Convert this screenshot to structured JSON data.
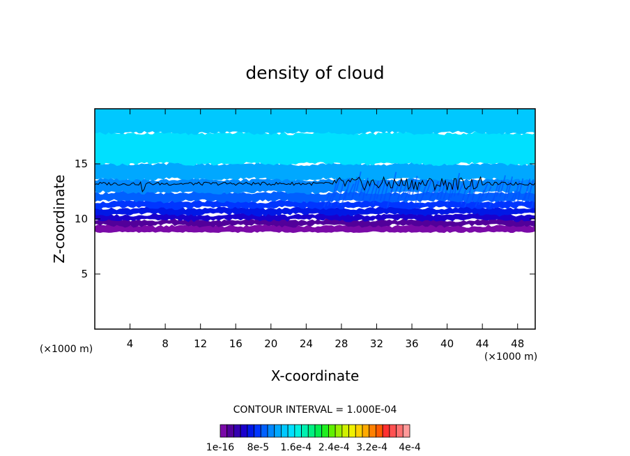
{
  "chart_data": {
    "type": "heatmap",
    "title": "density of cloud",
    "xlabel": "X-coordinate",
    "ylabel": "Z-coordinate",
    "x_unit": "(×1000 m)",
    "y_unit": "(×1000 m)",
    "xlim": [
      0,
      50
    ],
    "ylim": [
      0,
      20
    ],
    "x_ticks": [
      4,
      8,
      12,
      16,
      20,
      24,
      28,
      32,
      36,
      40,
      44,
      48
    ],
    "y_ticks": [
      5,
      10,
      15
    ],
    "contour_interval_label": "CONTOUR INTERVAL = 1.000E-04",
    "colorbar": {
      "labels": [
        "1e-16",
        "8e-5",
        "1.6e-4",
        "2.4e-4",
        "3.2e-4",
        "4e-4"
      ],
      "colors": [
        "#7a0aa8",
        "#52009a",
        "#3500b0",
        "#1a00cc",
        "#0018e6",
        "#0035ff",
        "#0060ff",
        "#0088ff",
        "#00a8ff",
        "#00c8ff",
        "#00e0ff",
        "#00f0e0",
        "#00f0b0",
        "#00f080",
        "#00ee50",
        "#20ee20",
        "#60f000",
        "#9af000",
        "#d0f000",
        "#f0f000",
        "#ffd000",
        "#ffaa00",
        "#ff8000",
        "#ff5a00",
        "#ff3030",
        "#ff5050",
        "#ff7070",
        "#ff9a9a"
      ]
    },
    "layers": [
      {
        "z_range": [
          8.8,
          9.4
        ],
        "color": "#7a0aa8"
      },
      {
        "z_range": [
          9.4,
          9.9
        ],
        "color": "#52009a"
      },
      {
        "z_range": [
          9.9,
          10.4
        ],
        "color": "#1a00cc"
      },
      {
        "z_range": [
          10.4,
          11.0
        ],
        "color": "#0018e6"
      },
      {
        "z_range": [
          11.0,
          11.6
        ],
        "color": "#0035ff"
      },
      {
        "z_range": [
          11.6,
          12.4
        ],
        "color": "#0060ff"
      },
      {
        "z_range": [
          12.4,
          13.6
        ],
        "color": "#0088ff"
      },
      {
        "z_range": [
          13.6,
          15.0
        ],
        "color": "#00a8ff"
      },
      {
        "z_range": [
          15.0,
          17.8
        ],
        "color": "#00e0ff"
      },
      {
        "z_range": [
          17.8,
          20.0
        ],
        "color": "#00c8ff"
      }
    ],
    "contour_z": 13.2
  }
}
